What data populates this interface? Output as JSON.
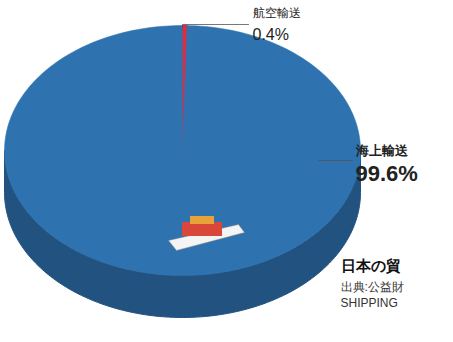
{
  "chart_data": {
    "type": "pie",
    "title": "日本の貿",
    "categories": [
      "航空輸送",
      "海上輸送"
    ],
    "values": [
      0.4,
      99.6
    ],
    "value_labels": [
      "0.4%",
      "99.6%"
    ],
    "colors": [
      "#e8283c",
      "#2f72b0"
    ],
    "data_labels": true,
    "annotations": [
      "出典:公益財",
      "SHIPPING"
    ]
  }
}
